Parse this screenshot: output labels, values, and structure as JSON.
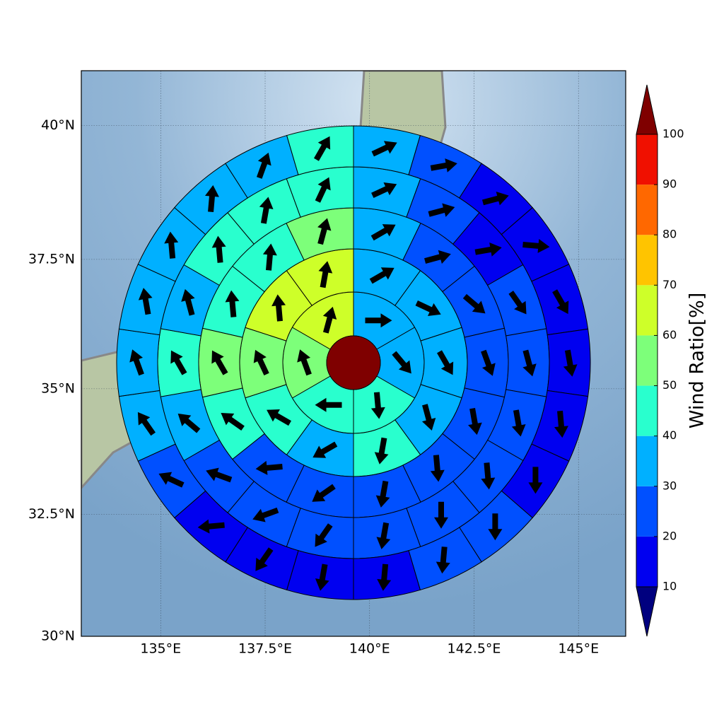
{
  "chart_data": {
    "type": "polar_grid_map",
    "xlim": [
      133.1,
      146.13
    ],
    "ylim": [
      30,
      41
    ],
    "xticks": [
      {
        "value": 135,
        "label": "135°E"
      },
      {
        "value": 137.5,
        "label": "137.5°E"
      },
      {
        "value": 140,
        "label": "140°E"
      },
      {
        "value": 142.5,
        "label": "142.5°E"
      },
      {
        "value": 145,
        "label": "145°E"
      }
    ],
    "yticks": [
      {
        "value": 30,
        "label": "30°N"
      },
      {
        "value": 32.5,
        "label": "32.5°N"
      },
      {
        "value": 35,
        "label": "35°N"
      },
      {
        "value": 37.5,
        "label": "37.5°N"
      },
      {
        "value": 40,
        "label": "40°N"
      }
    ],
    "grid": true,
    "colorbar": {
      "label": "Wind Ratio[%]",
      "levels": [
        10,
        20,
        30,
        40,
        50,
        60,
        70,
        80,
        90,
        100
      ],
      "colors": [
        "#00007f",
        "#0000f0",
        "#0050ff",
        "#00b0ff",
        "#29ffce",
        "#7dff7a",
        "#ceff29",
        "#ffc400",
        "#ff6800",
        "#f01000",
        "#7f0000"
      ]
    },
    "center_value": 105,
    "rings": [
      {
        "values": [
          35,
          35,
          45,
          45,
          55,
          65
        ],
        "directions": [
          90,
          140,
          175,
          270,
          340,
          15
        ]
      },
      {
        "values": [
          35,
          35,
          35,
          35,
          45,
          35,
          45,
          55,
          65,
          65
        ],
        "directions": [
          60,
          115,
          150,
          165,
          190,
          240,
          300,
          335,
          355,
          10
        ]
      },
      {
        "values": [
          35,
          25,
          25,
          25,
          25,
          25,
          25,
          25,
          25,
          45,
          55,
          45,
          45,
          55
        ],
        "directions": [
          60,
          75,
          130,
          160,
          170,
          175,
          190,
          235,
          265,
          305,
          330,
          355,
          5,
          15
        ]
      },
      {
        "values": [
          35,
          25,
          15,
          25,
          25,
          25,
          25,
          25,
          25,
          25,
          25,
          25,
          35,
          45,
          35,
          45,
          45,
          45
        ],
        "directions": [
          65,
          75,
          80,
          145,
          165,
          170,
          175,
          180,
          190,
          215,
          250,
          290,
          310,
          330,
          345,
          355,
          10,
          25
        ]
      },
      {
        "values": [
          35,
          25,
          15,
          15,
          15,
          15,
          15,
          15,
          25,
          25,
          15,
          15,
          15,
          15,
          25,
          35,
          35,
          35,
          35,
          35,
          35,
          45
        ],
        "directions": [
          65,
          80,
          75,
          95,
          150,
          170,
          175,
          180,
          180,
          185,
          185,
          190,
          215,
          265,
          295,
          325,
          340,
          350,
          355,
          5,
          20,
          30
        ]
      }
    ]
  }
}
